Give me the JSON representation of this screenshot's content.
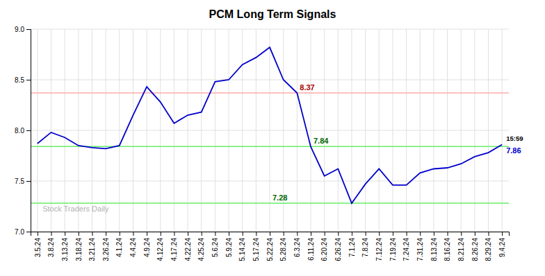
{
  "chart_data": {
    "type": "line",
    "title": "PCM Long Term Signals",
    "categories": [
      "3.5.24",
      "3.8.24",
      "3.13.24",
      "3.18.24",
      "3.21.24",
      "3.26.24",
      "4.1.24",
      "4.4.24",
      "4.9.24",
      "4.12.24",
      "4.17.24",
      "4.22.24",
      "4.25.24",
      "5.6.24",
      "5.9.24",
      "5.14.24",
      "5.17.24",
      "5.22.24",
      "5.28.24",
      "6.3.24",
      "6.11.24",
      "6.20.24",
      "6.26.24",
      "7.1.24",
      "7.8.24",
      "7.12.24",
      "7.19.24",
      "7.24.24",
      "7.31.24",
      "8.13.24",
      "8.16.24",
      "8.21.24",
      "8.26.24",
      "8.29.24",
      "9.4.24"
    ],
    "values": [
      7.87,
      7.98,
      7.93,
      7.85,
      7.83,
      7.82,
      7.85,
      8.15,
      8.43,
      8.28,
      8.07,
      8.15,
      8.18,
      8.48,
      8.5,
      8.65,
      8.72,
      8.82,
      8.5,
      8.37,
      7.84,
      7.55,
      7.62,
      7.28,
      7.47,
      7.62,
      7.46,
      7.46,
      7.58,
      7.62,
      7.63,
      7.67,
      7.74,
      7.78,
      7.86
    ],
    "color": "#0000cc",
    "ylim": [
      7.0,
      9.0
    ],
    "yticks": [
      {
        "value": 7.0,
        "label": "7.0"
      },
      7.5,
      {
        "value": 8.0,
        "label": "8.0"
      },
      8.5,
      {
        "value": 9.0,
        "label": "9.0"
      }
    ],
    "grid": true,
    "reference_lines": [
      {
        "value": 8.37,
        "label": "8.37",
        "color": "#ffaaaa",
        "label_color": "#aa0000",
        "x": "6.3.24"
      },
      {
        "value": 7.84,
        "label": "7.84",
        "color": "#66ee66",
        "label_color": "#006600",
        "x": "6.11.24"
      },
      {
        "value": 7.28,
        "label": "7.28",
        "color": "#66ee66",
        "label_color": "#006600",
        "x": "5.22.24"
      }
    ],
    "annotations": [
      {
        "text": "15:59",
        "x": "9.4.24",
        "color": "#000000"
      },
      {
        "text": "7.86",
        "x": "9.4.24",
        "color": "#0000cc"
      },
      {
        "text": "Stock Traders Daily",
        "color": "#b0b0b0"
      }
    ]
  }
}
